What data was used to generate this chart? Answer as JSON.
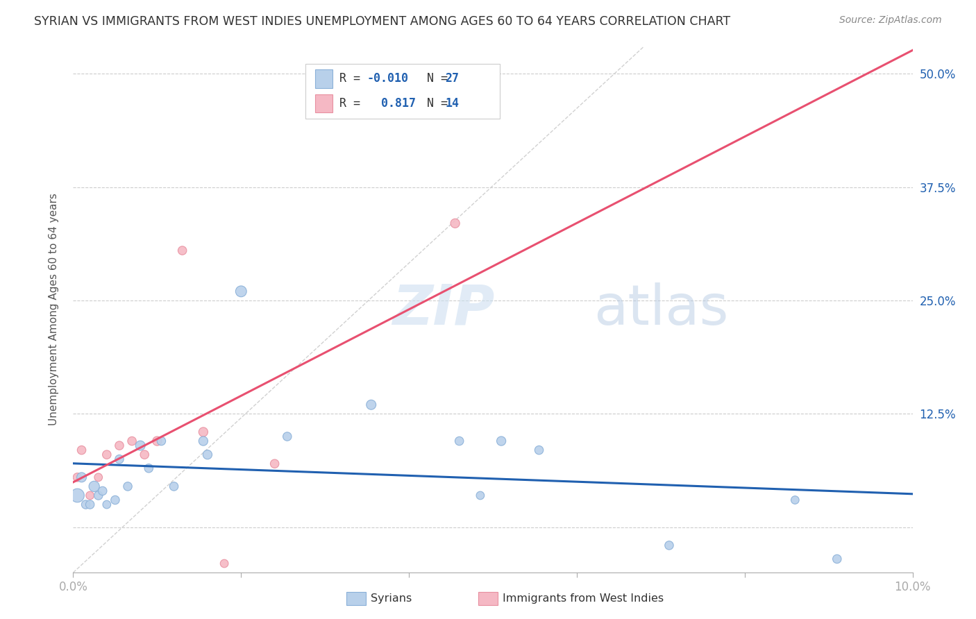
{
  "title": "SYRIAN VS IMMIGRANTS FROM WEST INDIES UNEMPLOYMENT AMONG AGES 60 TO 64 YEARS CORRELATION CHART",
  "source": "Source: ZipAtlas.com",
  "ylabel": "Unemployment Among Ages 60 to 64 years",
  "xlim": [
    0.0,
    10.0
  ],
  "ylim": [
    -5.0,
    53.0
  ],
  "x_ticks": [
    0.0,
    2.0,
    4.0,
    6.0,
    8.0,
    10.0
  ],
  "y_ticks": [
    0.0,
    12.5,
    25.0,
    37.5,
    50.0
  ],
  "y_tick_labels": [
    "",
    "12.5%",
    "25.0%",
    "37.5%",
    "50.0%"
  ],
  "background_color": "#ffffff",
  "grid_color": "#cccccc",
  "watermark_zip": "ZIP",
  "watermark_atlas": "atlas",
  "syrians": {
    "R": -0.01,
    "N": 27,
    "color": "#b8d0ea",
    "edge_color": "#8ab0d8",
    "line_color": "#2060b0",
    "label": "Syrians",
    "x": [
      0.05,
      0.1,
      0.15,
      0.2,
      0.25,
      0.3,
      0.35,
      0.4,
      0.5,
      0.55,
      0.65,
      0.8,
      0.9,
      1.05,
      1.2,
      1.55,
      1.6,
      2.0,
      2.55,
      3.55,
      4.6,
      4.85,
      5.1,
      5.55,
      7.1,
      8.6,
      9.1
    ],
    "y": [
      3.5,
      5.5,
      2.5,
      2.5,
      4.5,
      3.5,
      4.0,
      2.5,
      3.0,
      7.5,
      4.5,
      9.0,
      6.5,
      9.5,
      4.5,
      9.5,
      8.0,
      26.0,
      10.0,
      13.5,
      9.5,
      3.5,
      9.5,
      8.5,
      -2.0,
      3.0,
      -3.5
    ],
    "size": [
      200,
      100,
      80,
      80,
      120,
      80,
      80,
      70,
      80,
      80,
      80,
      100,
      80,
      80,
      80,
      90,
      90,
      130,
      80,
      100,
      80,
      70,
      90,
      80,
      80,
      70,
      80
    ]
  },
  "west_indies": {
    "R": 0.817,
    "N": 14,
    "color": "#f5b8c4",
    "edge_color": "#e890a0",
    "line_color": "#e85070",
    "label": "Immigrants from West Indies",
    "x": [
      0.05,
      0.1,
      0.2,
      0.3,
      0.4,
      0.55,
      0.7,
      0.85,
      1.0,
      1.3,
      1.55,
      1.8,
      2.4,
      4.55
    ],
    "y": [
      5.5,
      8.5,
      3.5,
      5.5,
      8.0,
      9.0,
      9.5,
      8.0,
      9.5,
      30.5,
      10.5,
      -4.0,
      7.0,
      33.5
    ],
    "size": [
      80,
      80,
      70,
      70,
      80,
      80,
      80,
      80,
      90,
      80,
      90,
      70,
      80,
      90
    ]
  },
  "diag_line_color": "#cccccc",
  "legend_color": "#2060b0",
  "text_color": "#333333"
}
